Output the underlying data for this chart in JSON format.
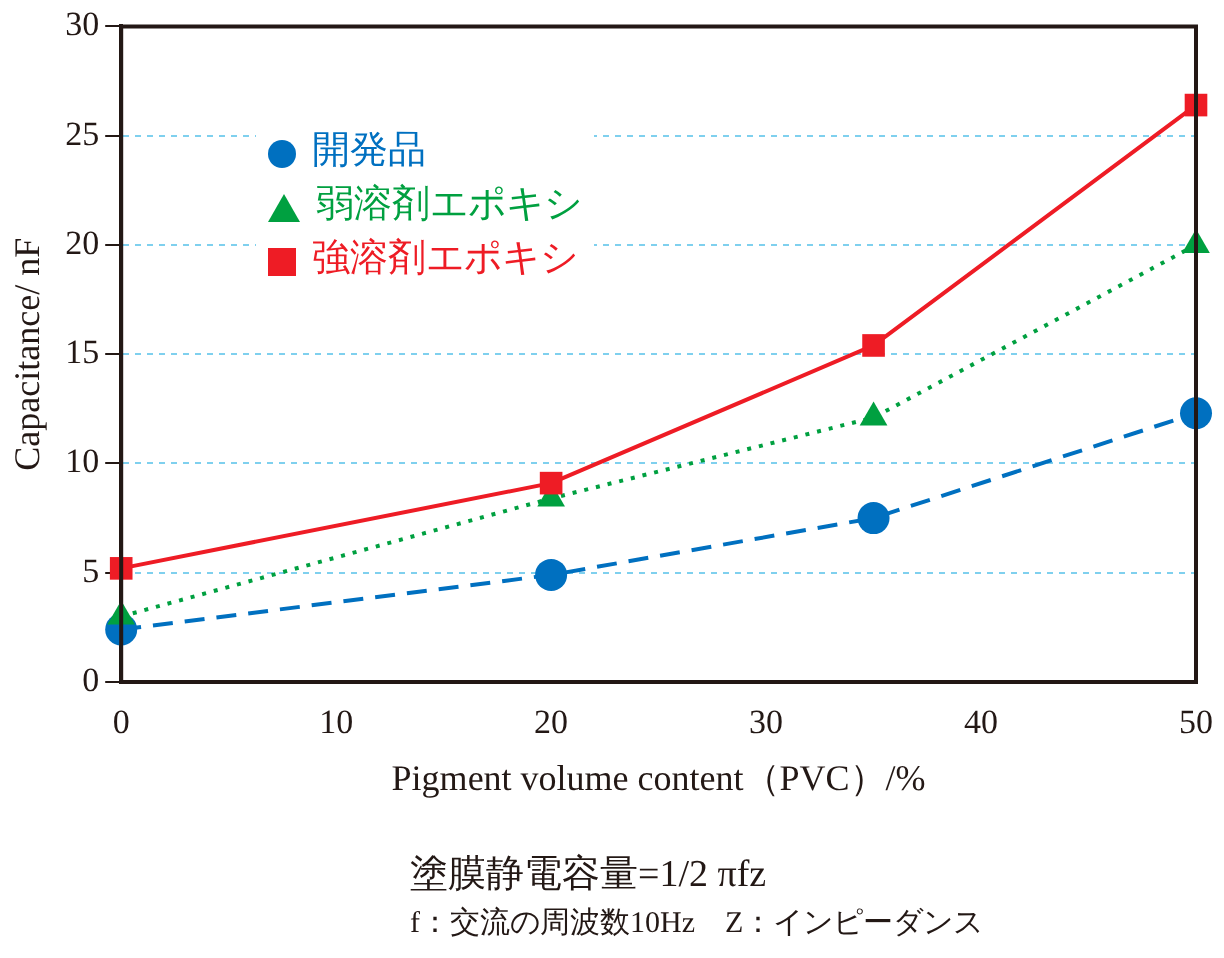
{
  "chart_data": {
    "type": "line",
    "xlabel": "Pigment volume content（PVC）/%",
    "ylabel": "Capacitance/ nF",
    "x": [
      0,
      20,
      35,
      50
    ],
    "series": [
      {
        "name": "開発品",
        "color": "#0070c0",
        "values": [
          2.4,
          4.9,
          7.5,
          12.3
        ],
        "marker": "circle",
        "line_style": "dashed"
      },
      {
        "name": "弱溶剤エポキシ",
        "color": "#00a040",
        "values": [
          3.0,
          8.4,
          12.1,
          20.0
        ],
        "marker": "triangle",
        "line_style": "dotted"
      },
      {
        "name": "強溶剤エポキシ",
        "color": "#ee1c25",
        "values": [
          5.2,
          9.1,
          15.4,
          26.4
        ],
        "marker": "square",
        "line_style": "solid"
      }
    ],
    "xlim": [
      0,
      50
    ],
    "xticks": [
      0,
      10,
      20,
      30,
      40,
      50
    ],
    "ylim": [
      0,
      30
    ],
    "yticks": [
      0,
      5,
      10,
      15,
      20,
      25,
      30
    ],
    "grid": "y",
    "legend": "top left",
    "annotations": [
      "塗膜静電容量=1/2 πfz",
      "f：交流の周波数10Hz　Z：インピーダンス"
    ]
  }
}
